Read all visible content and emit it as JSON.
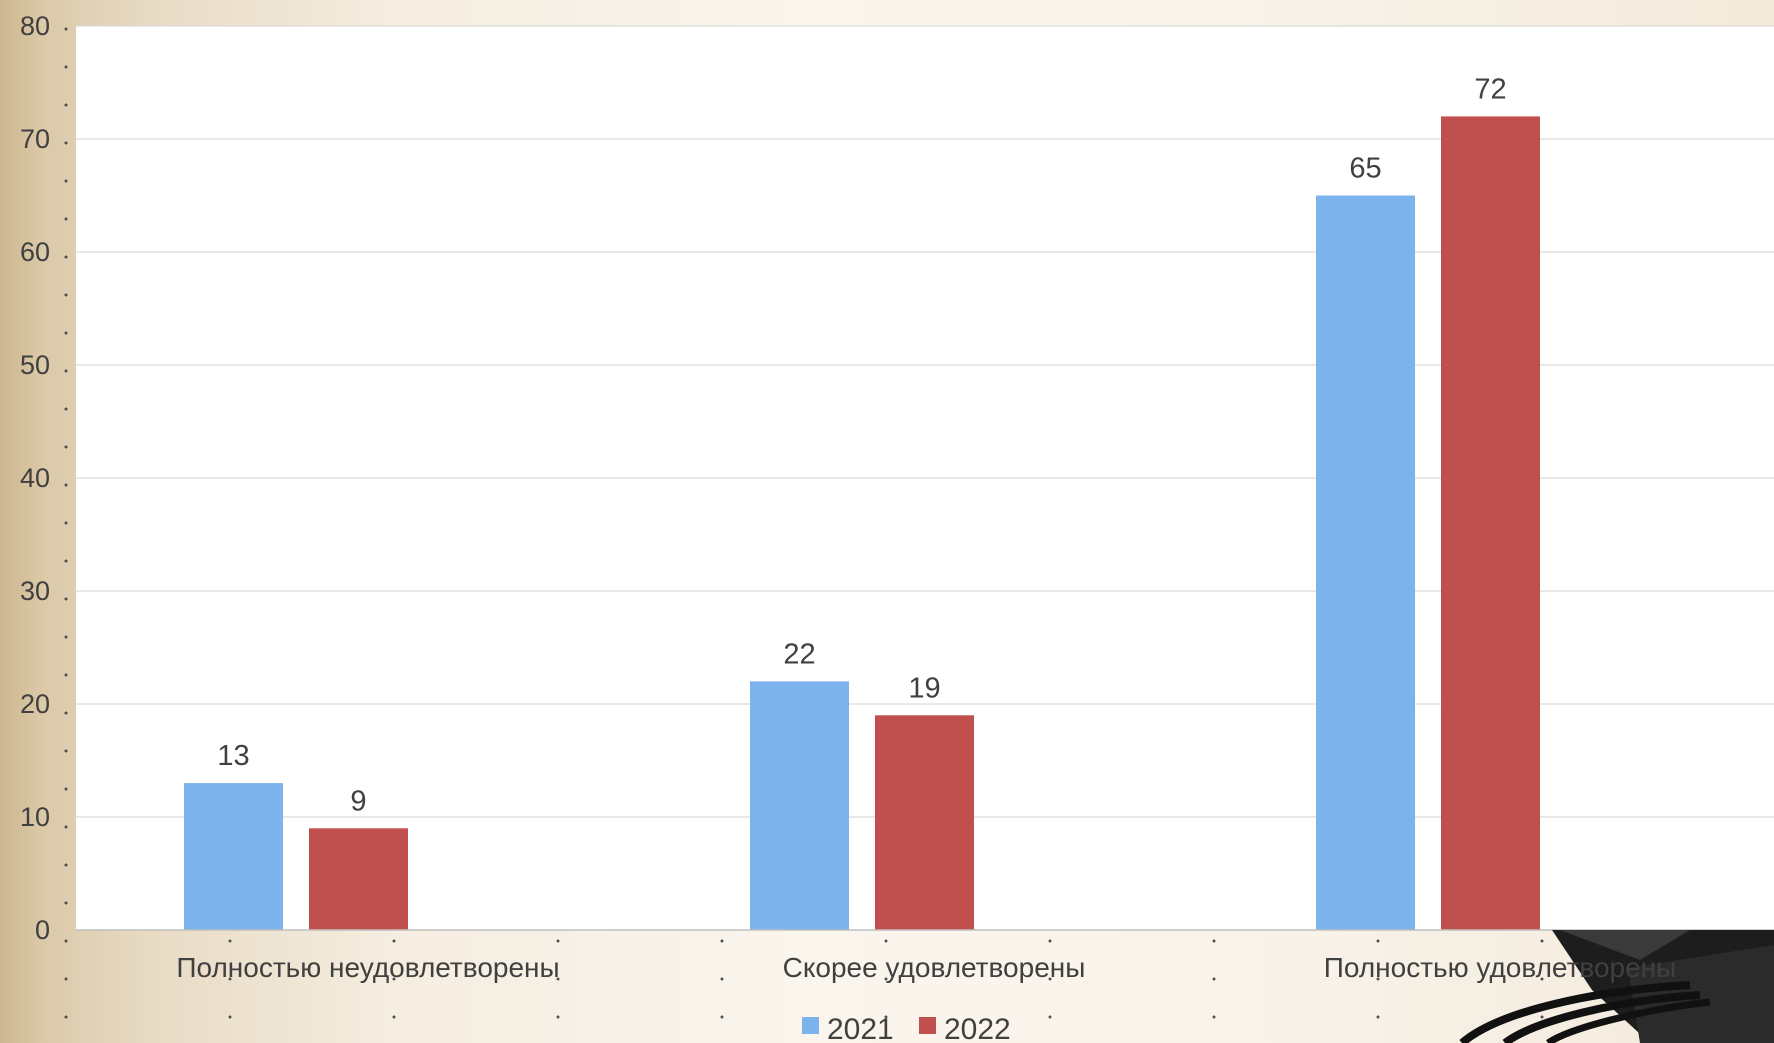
{
  "chart_data": {
    "type": "bar",
    "categories": [
      "Полностью неудовлетворены",
      "Скорее удовлетворены",
      "Полностью удовлетворены"
    ],
    "series": [
      {
        "name": "2021",
        "values": [
          13,
          22,
          65
        ],
        "color": "#7db3ec"
      },
      {
        "name": "2022",
        "values": [
          9,
          19,
          72
        ],
        "color": "#c0504d"
      }
    ],
    "ylim": [
      0,
      80
    ],
    "yticks": [
      0,
      10,
      20,
      30,
      40,
      50,
      60,
      70,
      80
    ],
    "grid": true,
    "legend": "bottom-center"
  },
  "colors": {
    "plot_background": "#ffffff",
    "gridline": "#d9d9d9",
    "text": "#404040"
  },
  "decoration": {
    "corner_image": "graduation-cap"
  }
}
